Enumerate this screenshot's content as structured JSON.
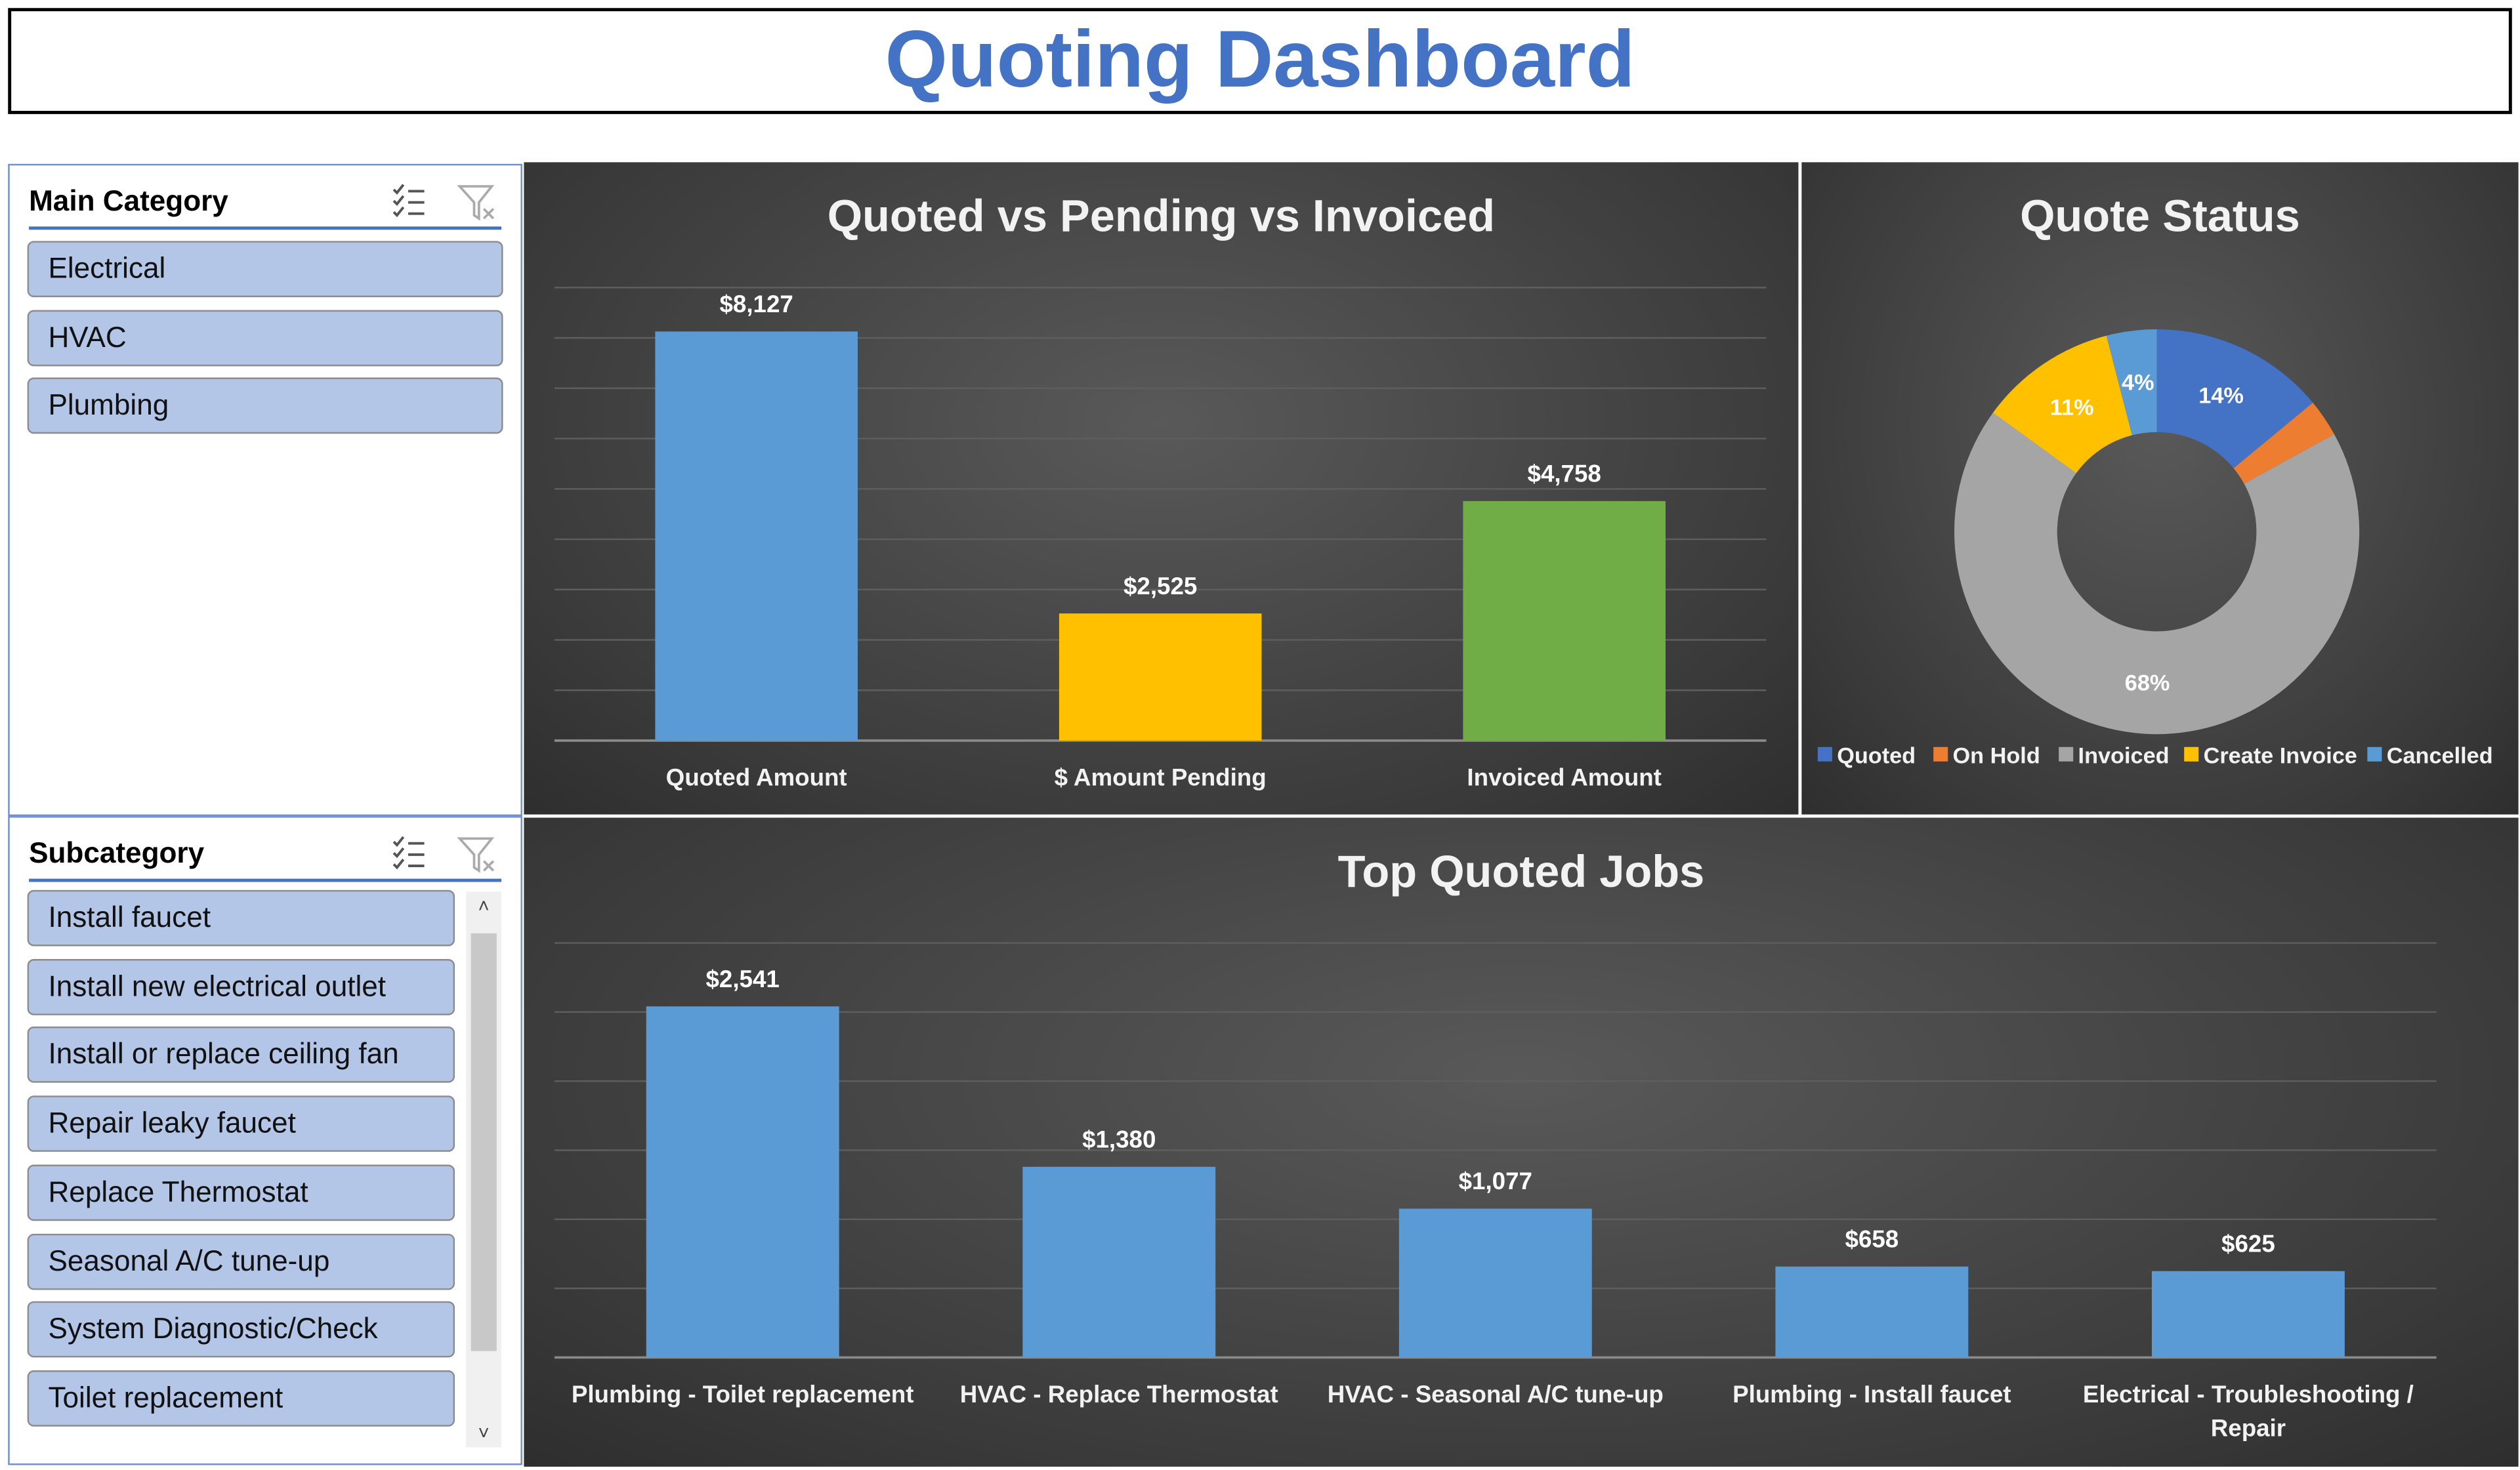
{
  "title": "Quoting Dashboard",
  "slicers": {
    "main": {
      "label": "Main Category",
      "items": [
        "Electrical",
        "HVAC",
        "Plumbing"
      ]
    },
    "sub": {
      "label": "Subcategory",
      "items": [
        "Install faucet",
        "Install new electrical outlet",
        "Install or replace ceiling fan",
        "Repair leaky faucet",
        "Replace Thermostat",
        "Seasonal A/C tune-up",
        "System Diagnostic/Check",
        "Toilet replacement"
      ]
    },
    "icons": {
      "multi_select": "multi-select-icon",
      "clear_filter": "clear-filter-icon"
    }
  },
  "chart_data": [
    {
      "type": "bar",
      "title": "Quoted vs Pending vs Invoiced",
      "categories": [
        "Quoted Amount",
        "$ Amount Pending",
        "Invoiced Amount"
      ],
      "values": [
        8127,
        2525,
        4758
      ],
      "labels": [
        "$8,127",
        "$2,525",
        "$4,758"
      ],
      "colors": [
        "#5B9BD5",
        "#FFC000",
        "#70AD47"
      ],
      "ylim": [
        0,
        9000
      ],
      "grid": true
    },
    {
      "type": "pie",
      "donut": true,
      "title": "Quote Status",
      "categories": [
        "Quoted",
        "On Hold",
        "Invoiced",
        "Create Invoice",
        "Cancelled"
      ],
      "values": [
        14,
        3,
        68,
        11,
        4
      ],
      "labels": [
        "14%",
        "3%",
        "68%",
        "11%",
        "4%"
      ],
      "colors": [
        "#4472C4",
        "#ED7D31",
        "#A5A5A5",
        "#FFC000",
        "#5B9BD5"
      ],
      "legend": "bottom"
    },
    {
      "type": "bar",
      "title": "Top Quoted Jobs",
      "categories": [
        "Plumbing - Toilet replacement",
        "HVAC - Replace Thermostat",
        "HVAC - Seasonal A/C tune-up",
        "Plumbing - Install faucet",
        "Electrical - Troubleshooting / Repair"
      ],
      "values": [
        2541,
        1380,
        1077,
        658,
        625
      ],
      "labels": [
        "$2,541",
        "$1,380",
        "$1,077",
        "$658",
        "$625"
      ],
      "colors": [
        "#5B9BD5"
      ],
      "ylim": [
        0,
        3000
      ],
      "grid": true
    }
  ]
}
